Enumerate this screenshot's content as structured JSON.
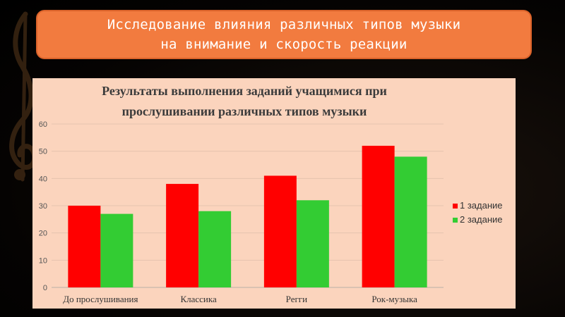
{
  "slide": {
    "title": "Исследование влияния различных типов музыки\nна внимание и скорость реакции"
  },
  "colors": {
    "title_bg": "#f27b3f",
    "chart_bg": "#fbd4bd",
    "series_1": "#ff0000",
    "series_2": "#33cc33"
  },
  "icons": {
    "decoration": "treble-clef-icon"
  },
  "chart_data": {
    "type": "bar",
    "title_lines": [
      "Результаты выполнения заданий учащимися при",
      "прослушивании различных типов музыки"
    ],
    "categories": [
      "До прослушивания",
      "Классика",
      "Регги",
      "Рок-музыка"
    ],
    "series": [
      {
        "name": "1 задание",
        "values": [
          30,
          38,
          41,
          52
        ]
      },
      {
        "name": "2 задание",
        "values": [
          27,
          28,
          32,
          48
        ]
      }
    ],
    "ylim": [
      0,
      60
    ],
    "yticks": [
      0,
      10,
      20,
      30,
      40,
      50,
      60
    ],
    "grid": true,
    "legend": "right"
  }
}
